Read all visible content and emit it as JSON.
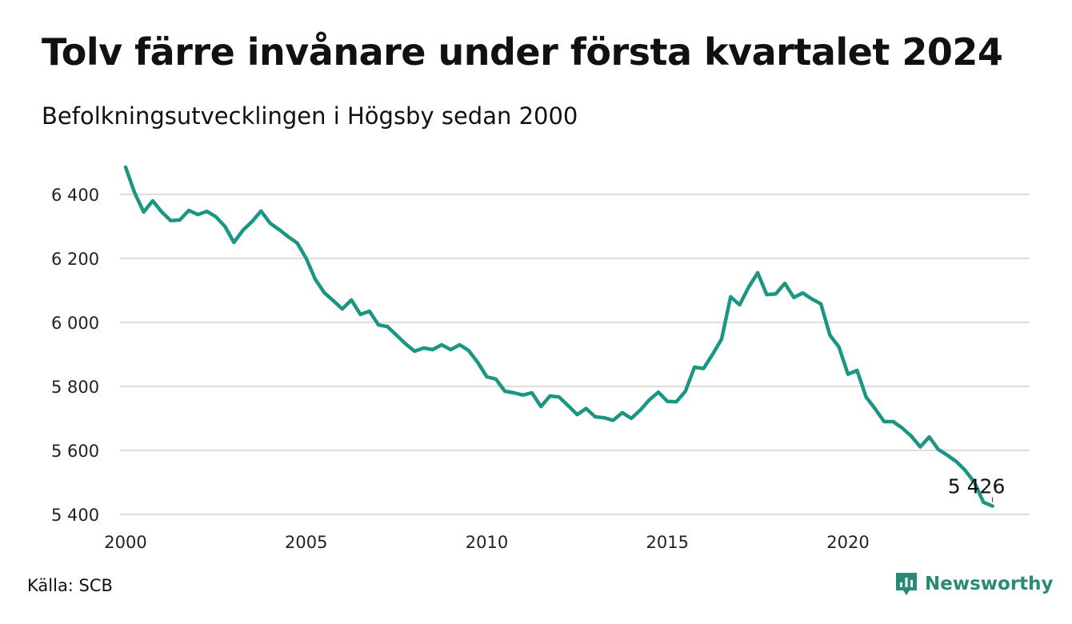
{
  "header": {
    "title": "Tolv färre invånare under första kvartalet 2024",
    "subtitle": "Befolkningsutvecklingen i Högsby sedan 2000"
  },
  "footer": {
    "source": "Källa: SCB",
    "brand": "Newsworthy"
  },
  "colors": {
    "line": "#1a9683",
    "grid": "#dddddd",
    "brand": "#2a8a78"
  },
  "icons": {
    "brand_logo": "newsworthy-logo-icon"
  },
  "chart_data": {
    "type": "line",
    "title": "Tolv färre invånare under första kvartalet 2024",
    "subtitle": "Befolkningsutvecklingen i Högsby sedan 2000",
    "xlabel": "",
    "ylabel": "",
    "xlim": [
      2000,
      2025
    ],
    "ylim": [
      5390,
      6500
    ],
    "grid": true,
    "legend": "none",
    "x_ticks": [
      2000,
      2005,
      2010,
      2015,
      2020
    ],
    "x_tick_labels": [
      "2000",
      "2005",
      "2010",
      "2015",
      "2020"
    ],
    "y_ticks": [
      5400,
      5600,
      5800,
      6000,
      6200,
      6400
    ],
    "y_tick_labels": [
      "5 400",
      "5 600",
      "5 800",
      "6 000",
      "6 200",
      "6 400"
    ],
    "annotation": {
      "x": 2024,
      "y": 5426,
      "label": "5 426"
    },
    "series": [
      {
        "x": [
          2000.0,
          2000.25,
          2000.5,
          2000.75,
          2001.0,
          2001.25,
          2001.5,
          2001.75,
          2002.0,
          2002.25,
          2002.5,
          2002.75,
          2003.0,
          2003.25,
          2003.5,
          2003.75,
          2004.0,
          2004.25,
          2004.5,
          2004.75,
          2005.0,
          2005.25,
          2005.5,
          2005.75,
          2006.0,
          2006.25,
          2006.5,
          2006.75,
          2007.0,
          2007.25,
          2007.5,
          2007.75,
          2008.0,
          2008.25,
          2008.5,
          2008.75,
          2009.0,
          2009.25,
          2009.5,
          2009.75,
          2010.0,
          2010.25,
          2010.5,
          2010.75,
          2011.0,
          2011.25,
          2011.5,
          2011.75,
          2012.0,
          2012.25,
          2012.5,
          2012.75,
          2013.0,
          2013.25,
          2013.5,
          2013.75,
          2014.0,
          2014.25,
          2014.5,
          2014.75,
          2015.0,
          2015.25,
          2015.5,
          2015.75,
          2016.0,
          2016.25,
          2016.5,
          2016.75,
          2017.0,
          2017.25,
          2017.5,
          2017.75,
          2018.0,
          2018.25,
          2018.5,
          2018.75,
          2019.0,
          2019.25,
          2019.5,
          2019.75,
          2020.0,
          2020.25,
          2020.5,
          2020.75,
          2021.0,
          2021.25,
          2021.5,
          2021.75,
          2022.0,
          2022.25,
          2022.5,
          2022.75,
          2023.0,
          2023.25,
          2023.5,
          2023.75,
          2024.0
        ],
        "values": [
          6485,
          6405,
          6345,
          6380,
          6345,
          6318,
          6320,
          6350,
          6337,
          6347,
          6330,
          6300,
          6250,
          6288,
          6315,
          6348,
          6310,
          6290,
          6268,
          6248,
          6200,
          6135,
          6093,
          6068,
          6042,
          6070,
          6025,
          6035,
          5992,
          5987,
          5960,
          5933,
          5910,
          5920,
          5915,
          5930,
          5915,
          5930,
          5912,
          5875,
          5830,
          5823,
          5785,
          5780,
          5773,
          5780,
          5737,
          5770,
          5767,
          5740,
          5712,
          5731,
          5705,
          5702,
          5694,
          5718,
          5700,
          5726,
          5758,
          5782,
          5753,
          5752,
          5785,
          5860,
          5856,
          5900,
          5948,
          6080,
          6055,
          6110,
          6155,
          6087,
          6089,
          6122,
          6078,
          6092,
          6073,
          6058,
          5960,
          5923,
          5838,
          5850,
          5767,
          5730,
          5690,
          5690,
          5670,
          5645,
          5611,
          5642,
          5603,
          5585,
          5565,
          5537,
          5500,
          5438,
          5426
        ]
      }
    ]
  }
}
